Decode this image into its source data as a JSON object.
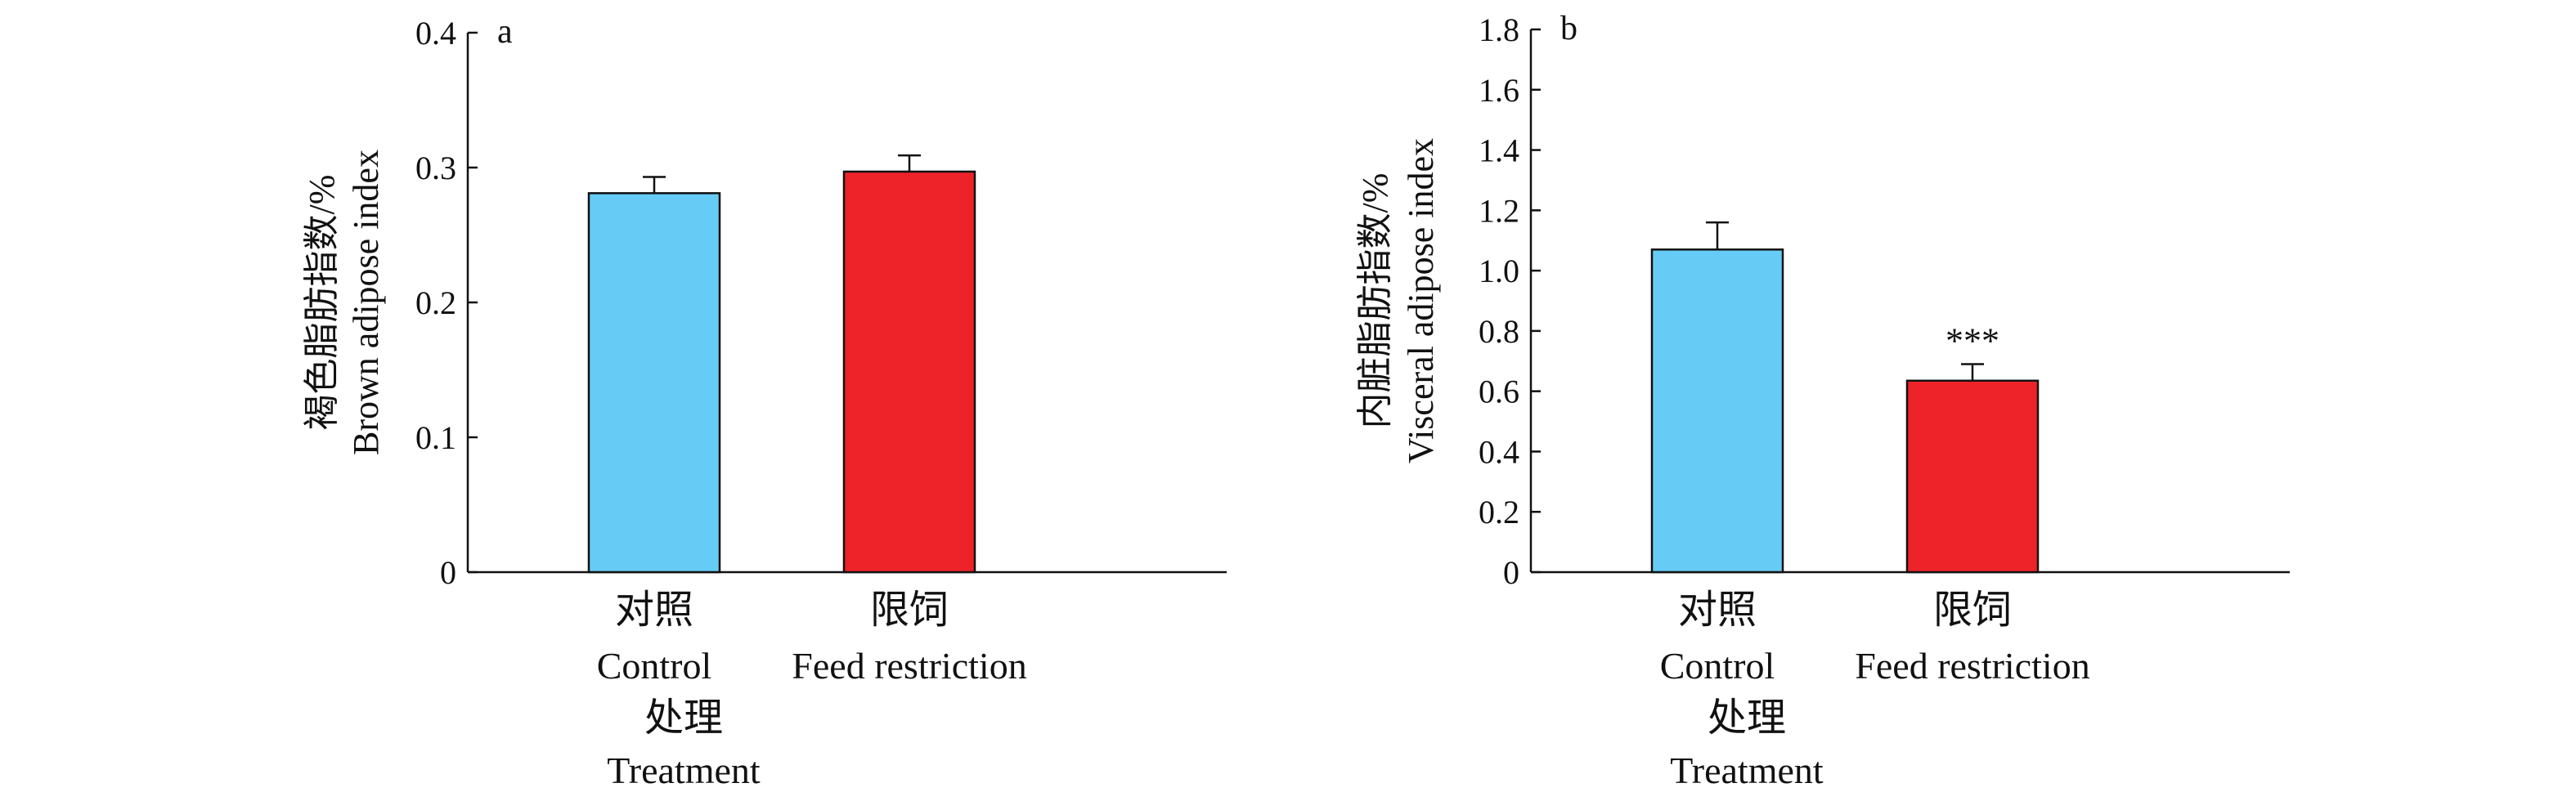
{
  "colors": {
    "control": "#66ccf5",
    "feed_restriction": "#ee2229",
    "axis": "#111111"
  },
  "chart_data": [
    {
      "type": "bar",
      "panel_label": "a",
      "ylabel_cn": "褐色脂肪指数/%",
      "ylabel_en": "Brown adipose index",
      "ylim": [
        0,
        0.4
      ],
      "yticks": [
        "0",
        "0.1",
        "0.2",
        "0.3",
        "0.4"
      ],
      "categories_cn": [
        "对照",
        "限饲"
      ],
      "categories_en": [
        "Control",
        "Feed restriction"
      ],
      "xlabel_cn": "处理",
      "xlabel_en": "Treatment",
      "values": [
        0.281,
        0.297
      ],
      "errors": [
        0.012,
        0.012
      ],
      "annotations": [
        "",
        ""
      ]
    },
    {
      "type": "bar",
      "panel_label": "b",
      "ylabel_cn": "内脏脂肪指数/%",
      "ylabel_en": "Visceral adipose index",
      "ylim": [
        0,
        1.8
      ],
      "yticks": [
        "0",
        "0.2",
        "0.4",
        "0.6",
        "0.8",
        "1.0",
        "1.2",
        "1.4",
        "1.6",
        "1.8"
      ],
      "categories_cn": [
        "对照",
        "限饲"
      ],
      "categories_en": [
        "Control",
        "Feed restriction"
      ],
      "xlabel_cn": "处理",
      "xlabel_en": "Treatment",
      "values": [
        1.07,
        0.635
      ],
      "errors": [
        0.09,
        0.055
      ],
      "annotations": [
        "",
        "***"
      ]
    }
  ]
}
